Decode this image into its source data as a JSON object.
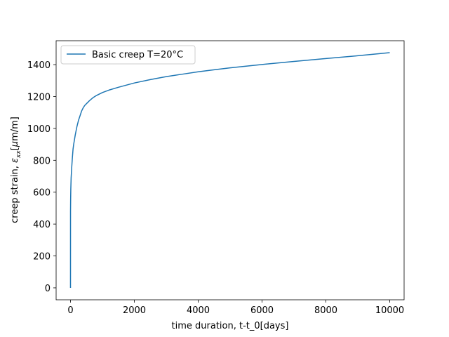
{
  "chart_data": {
    "type": "line",
    "title": "",
    "xlabel": "time duration, t-t_0[days]",
    "ylabel_parts": [
      "creep strain, ",
      "ε",
      "xx",
      "[",
      "μ",
      "m/m]"
    ],
    "xlim": [
      -450,
      10450
    ],
    "ylim": [
      -75,
      1550
    ],
    "xticks": [
      0,
      2000,
      4000,
      6000,
      8000,
      10000
    ],
    "yticks": [
      0,
      200,
      400,
      600,
      800,
      1000,
      1200,
      1400
    ],
    "grid": false,
    "legend": "upper left",
    "series": [
      {
        "name": "Basic creep T=20°C",
        "color": "#1f77b4",
        "x": [
          0,
          1,
          5,
          10,
          20,
          40,
          60,
          80,
          100,
          150,
          200,
          250,
          300,
          350,
          400,
          450,
          500,
          600,
          700,
          800,
          1000,
          1200,
          1500,
          2000,
          2500,
          3000,
          3500,
          4000,
          4500,
          5000,
          6000,
          7000,
          8000,
          9000,
          10000
        ],
        "y": [
          0,
          480,
          560,
          620,
          690,
          760,
          820,
          870,
          900,
          960,
          1010,
          1050,
          1080,
          1110,
          1130,
          1145,
          1155,
          1175,
          1192,
          1205,
          1225,
          1240,
          1258,
          1285,
          1306,
          1325,
          1340,
          1355,
          1368,
          1380,
          1401,
          1420,
          1438,
          1456,
          1475
        ]
      }
    ]
  }
}
